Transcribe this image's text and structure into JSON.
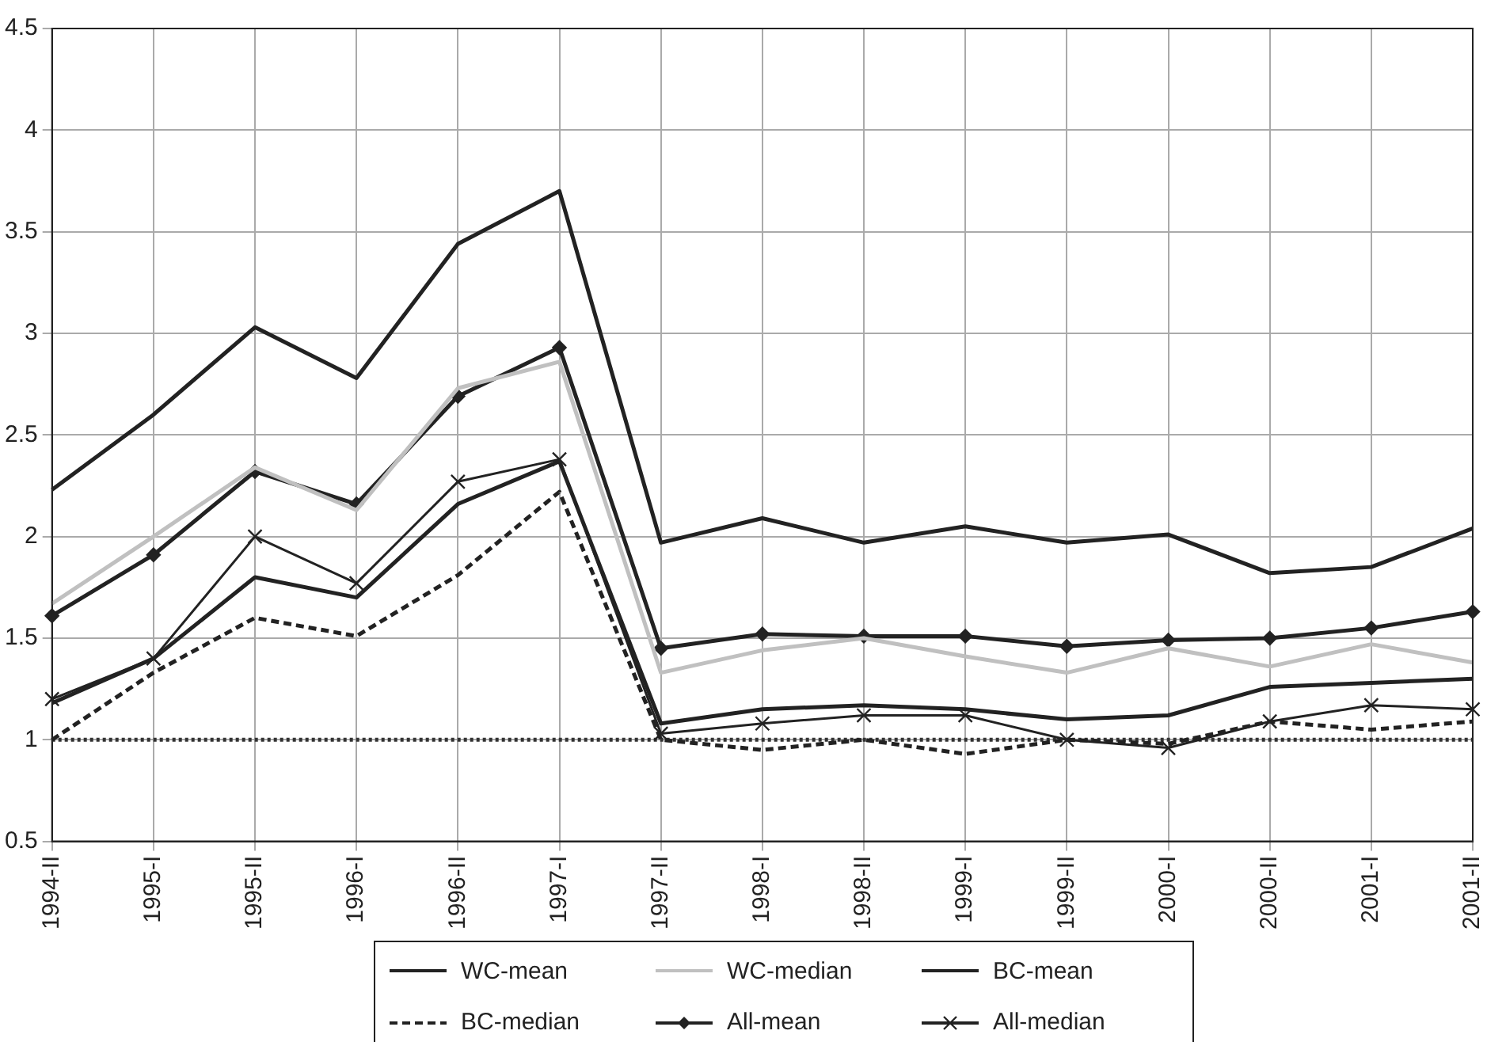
{
  "chart_data": {
    "type": "line",
    "categories": [
      "1994-II",
      "1995-I",
      "1995-II",
      "1996-I",
      "1996-II",
      "1997-I",
      "1997-II",
      "1998-I",
      "1998-II",
      "1999-I",
      "1999-II",
      "2000-I",
      "2000-II",
      "2001-I",
      "2001-II"
    ],
    "series": [
      {
        "name": "WC-mean",
        "color": "#222222",
        "marker": "none",
        "line_style": "solid",
        "values": [
          2.23,
          2.6,
          3.03,
          2.78,
          3.44,
          3.7,
          1.97,
          2.09,
          1.97,
          2.05,
          1.97,
          2.01,
          1.82,
          1.85,
          2.04
        ]
      },
      {
        "name": "WC-median",
        "color": "#c0c0c0",
        "marker": "none",
        "line_style": "solid",
        "values": [
          1.67,
          2.0,
          2.34,
          2.13,
          2.73,
          2.86,
          1.33,
          1.44,
          1.5,
          1.41,
          1.33,
          1.45,
          1.36,
          1.47,
          1.38
        ]
      },
      {
        "name": "BC-mean",
        "color": "#222222",
        "marker": "none",
        "line_style": "solid",
        "values": [
          1.18,
          1.4,
          1.8,
          1.7,
          2.16,
          2.37,
          1.08,
          1.15,
          1.17,
          1.15,
          1.1,
          1.12,
          1.26,
          1.28,
          1.3
        ]
      },
      {
        "name": "BC-median",
        "color": "#222222",
        "marker": "none",
        "line_style": "dashed",
        "values": [
          1.0,
          1.33,
          1.6,
          1.51,
          1.81,
          2.22,
          1.0,
          0.95,
          1.0,
          0.93,
          1.0,
          0.98,
          1.09,
          1.05,
          1.09
        ]
      },
      {
        "name": "All-mean",
        "color": "#222222",
        "marker": "diamond",
        "line_style": "solid",
        "values": [
          1.61,
          1.91,
          2.32,
          2.16,
          2.69,
          2.93,
          1.45,
          1.52,
          1.51,
          1.51,
          1.46,
          1.49,
          1.5,
          1.55,
          1.63
        ]
      },
      {
        "name": "All-median",
        "color": "#222222",
        "marker": "cross",
        "line_style": "solid",
        "values": [
          1.2,
          1.4,
          2.0,
          1.77,
          2.27,
          2.38,
          1.03,
          1.08,
          1.12,
          1.12,
          1.0,
          0.96,
          1.09,
          1.17,
          1.15
        ]
      }
    ],
    "ref_lines": [
      {
        "axis": "y",
        "value": 1,
        "color": "#333333",
        "line_style": "dotted"
      }
    ],
    "ylim": [
      0.5,
      4.5
    ],
    "yticks": [
      0.5,
      1,
      1.5,
      2,
      2.5,
      3,
      3.5,
      4,
      4.5
    ],
    "grid": true,
    "legend": "bottom"
  }
}
